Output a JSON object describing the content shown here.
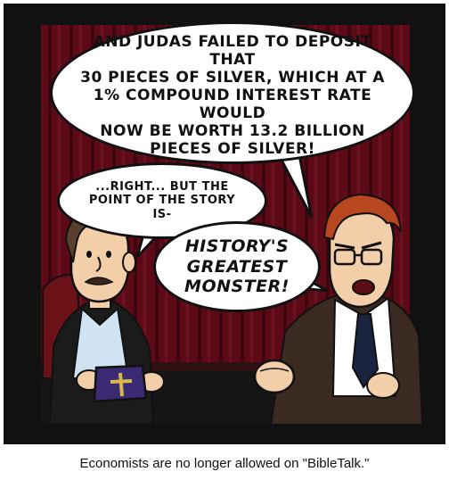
{
  "comic": {
    "speech_top": "AND JUDAS FAILED TO DEPOSIT THAT\n30 PIECES OF SILVER, WHICH AT A\n1% COMPOUND INTEREST RATE WOULD\nNOW BE WORTH 13.2 BILLION\nPIECES OF SILVER!",
    "speech_middle": "...RIGHT... BUT THE\nPOINT OF THE STORY\nIS-",
    "speech_right": "HISTORY'S\nGREATEST\nMONSTER!"
  },
  "caption": "Economists are no longer allowed on \"BibleTalk.\"",
  "colors": {
    "frame": "#111111",
    "backdrop": "#5c0a16",
    "backdrop_stripe": "#3f0610",
    "skin": "#f2cfa8",
    "hair_left": "#5a3f2d",
    "hair_right": "#b8461e",
    "bible_cover": "#3a2a74",
    "cross": "#d8b84a",
    "shirt": "#cfe3f2"
  }
}
